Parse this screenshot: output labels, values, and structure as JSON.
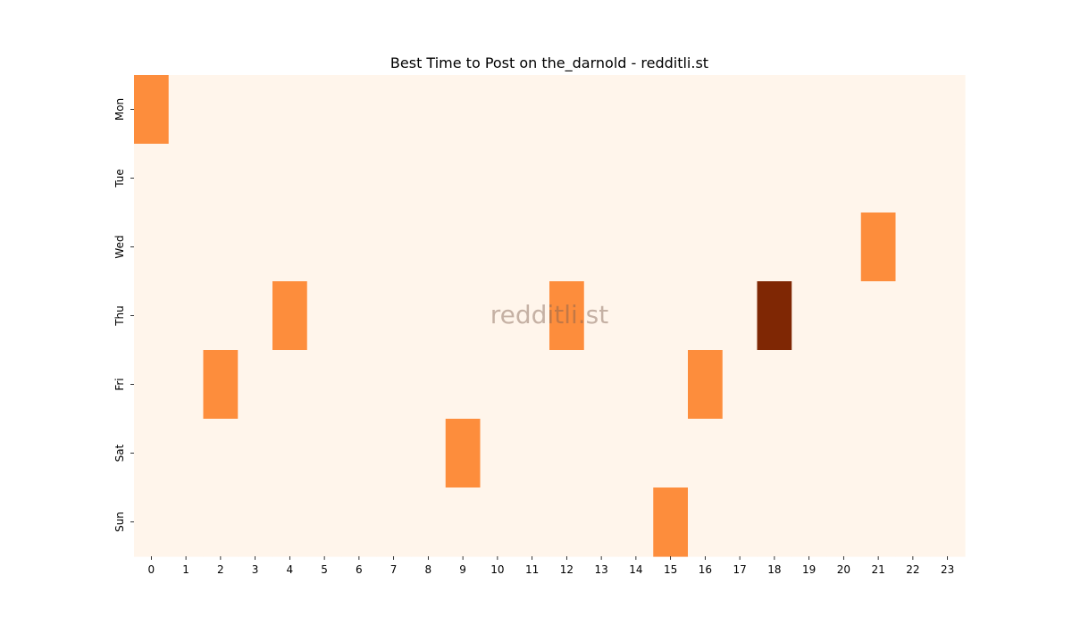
{
  "chart_data": {
    "type": "heatmap",
    "title": "Best Time to Post on the_darnold - redditli.st",
    "watermark": "redditli.st",
    "x_categories": [
      "0",
      "1",
      "2",
      "3",
      "4",
      "5",
      "6",
      "7",
      "8",
      "9",
      "10",
      "11",
      "12",
      "13",
      "14",
      "15",
      "16",
      "17",
      "18",
      "19",
      "20",
      "21",
      "22",
      "23"
    ],
    "y_categories": [
      "Mon",
      "Tue",
      "Wed",
      "Thu",
      "Fri",
      "Sat",
      "Sun"
    ],
    "values": [
      [
        1,
        0,
        0,
        0,
        0,
        0,
        0,
        0,
        0,
        0,
        0,
        0,
        0,
        0,
        0,
        0,
        0,
        0,
        0,
        0,
        0,
        0,
        0,
        0
      ],
      [
        0,
        0,
        0,
        0,
        0,
        0,
        0,
        0,
        0,
        0,
        0,
        0,
        0,
        0,
        0,
        0,
        0,
        0,
        0,
        0,
        0,
        0,
        0,
        0
      ],
      [
        0,
        0,
        0,
        0,
        0,
        0,
        0,
        0,
        0,
        0,
        0,
        0,
        0,
        0,
        0,
        0,
        0,
        0,
        0,
        0,
        0,
        1,
        0,
        0
      ],
      [
        0,
        0,
        0,
        0,
        1,
        0,
        0,
        0,
        0,
        0,
        0,
        0,
        1,
        0,
        0,
        0,
        0,
        0,
        2,
        0,
        0,
        0,
        0,
        0
      ],
      [
        0,
        0,
        1,
        0,
        0,
        0,
        0,
        0,
        0,
        0,
        0,
        0,
        0,
        0,
        0,
        0,
        1,
        0,
        0,
        0,
        0,
        0,
        0,
        0
      ],
      [
        0,
        0,
        0,
        0,
        0,
        0,
        0,
        0,
        0,
        1,
        0,
        0,
        0,
        0,
        0,
        0,
        0,
        0,
        0,
        0,
        0,
        0,
        0,
        0
      ],
      [
        0,
        0,
        0,
        0,
        0,
        0,
        0,
        0,
        0,
        0,
        0,
        0,
        0,
        0,
        0,
        1,
        0,
        0,
        0,
        0,
        0,
        0,
        0,
        0
      ]
    ],
    "colors": {
      "0": "#fff5eb",
      "1": "#fd8d3c",
      "2": "#7f2704"
    },
    "xlabel": "",
    "ylabel": "",
    "grid": false,
    "legend": "none"
  }
}
